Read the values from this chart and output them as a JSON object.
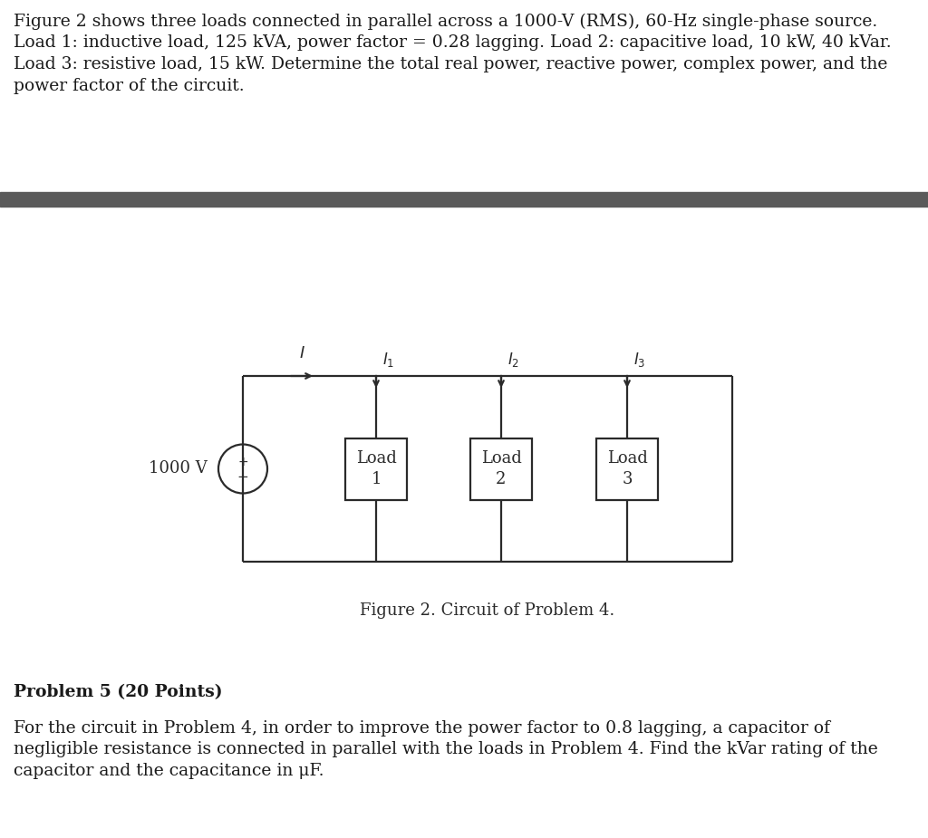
{
  "bg_color": "#ffffff",
  "text_color": "#1a1a1a",
  "separator_color": "#5a5a5a",
  "fig_width": 10.24,
  "fig_height": 9.25,
  "paragraph1_lines": [
    "Figure 2 shows three loads connected in parallel across a 1000-V (RMS), 60-Hz single-phase source.",
    "Load 1: inductive load, 125 kVA, power factor = 0.28 lagging. Load 2: capacitive load, 10 kW, 40 kVar.",
    "Load 3: resistive load, 15 kW. Determine the total real power, reactive power, complex power, and the",
    "power factor of the circuit."
  ],
  "problem5_bold": "Problem 5 (20 Points)",
  "paragraph2_lines": [
    "For the circuit in Problem 4, in order to improve the power factor to 0.8 lagging, a capacitor of",
    "negligible resistance is connected in parallel with the loads in Problem 4. Find the kVar rating of the",
    "capacitor and the capacitance in μF."
  ],
  "fig_caption": "Figure 2. Circuit of Problem 4.",
  "circuit_label_V": "1000 V",
  "load_labels": [
    "Load\n1",
    "Load\n2",
    "Load\n3"
  ],
  "font_size_body": 13.5,
  "font_size_caption": 13,
  "font_size_circuit": 13,
  "font_size_bold": 13.5,
  "line_color": "#2a2a2a",
  "line_width": 1.6
}
